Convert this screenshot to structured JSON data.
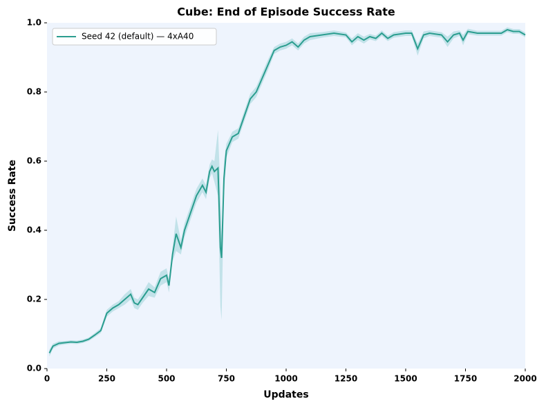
{
  "chart_data": {
    "type": "line",
    "title": "Cube: End of Episode Success Rate",
    "x_label": "Updates",
    "y_label": "Success Rate",
    "x": [
      10,
      25,
      50,
      75,
      100,
      125,
      150,
      175,
      200,
      225,
      250,
      275,
      300,
      325,
      350,
      365,
      380,
      400,
      425,
      450,
      475,
      500,
      510,
      525,
      540,
      560,
      575,
      600,
      625,
      650,
      665,
      680,
      690,
      700,
      715,
      725,
      730,
      740,
      750,
      775,
      800,
      825,
      850,
      875,
      900,
      925,
      950,
      975,
      1000,
      1025,
      1050,
      1075,
      1100,
      1150,
      1200,
      1250,
      1275,
      1300,
      1325,
      1350,
      1375,
      1400,
      1425,
      1450,
      1500,
      1525,
      1550,
      1575,
      1600,
      1650,
      1675,
      1700,
      1725,
      1740,
      1760,
      1800,
      1850,
      1900,
      1925,
      1950,
      1975,
      2000
    ],
    "series": [
      {
        "name": "Seed 42 (default) — 4xA40",
        "color": "#2a9d8f",
        "band_color": "#9fd3d8",
        "values": [
          0.045,
          0.065,
          0.073,
          0.075,
          0.077,
          0.076,
          0.079,
          0.085,
          0.097,
          0.11,
          0.16,
          0.175,
          0.185,
          0.2,
          0.215,
          0.19,
          0.185,
          0.205,
          0.23,
          0.22,
          0.26,
          0.27,
          0.24,
          0.33,
          0.39,
          0.35,
          0.4,
          0.45,
          0.5,
          0.53,
          0.51,
          0.57,
          0.585,
          0.57,
          0.58,
          0.35,
          0.32,
          0.55,
          0.63,
          0.67,
          0.68,
          0.73,
          0.78,
          0.8,
          0.84,
          0.88,
          0.92,
          0.93,
          0.935,
          0.945,
          0.93,
          0.95,
          0.96,
          0.965,
          0.97,
          0.965,
          0.945,
          0.96,
          0.95,
          0.96,
          0.955,
          0.97,
          0.955,
          0.965,
          0.97,
          0.97,
          0.925,
          0.965,
          0.97,
          0.965,
          0.945,
          0.965,
          0.97,
          0.95,
          0.975,
          0.97,
          0.97,
          0.97,
          0.98,
          0.975,
          0.975,
          0.965
        ],
        "upper": [
          0.055,
          0.072,
          0.079,
          0.08,
          0.082,
          0.081,
          0.084,
          0.09,
          0.103,
          0.117,
          0.17,
          0.185,
          0.195,
          0.215,
          0.23,
          0.205,
          0.2,
          0.22,
          0.25,
          0.235,
          0.28,
          0.29,
          0.26,
          0.35,
          0.44,
          0.37,
          0.42,
          0.47,
          0.52,
          0.55,
          0.53,
          0.59,
          0.605,
          0.6,
          0.69,
          0.52,
          0.38,
          0.6,
          0.65,
          0.685,
          0.695,
          0.745,
          0.795,
          0.815,
          0.855,
          0.895,
          0.93,
          0.94,
          0.945,
          0.955,
          0.94,
          0.96,
          0.97,
          0.973,
          0.978,
          0.972,
          0.955,
          0.97,
          0.96,
          0.968,
          0.963,
          0.978,
          0.963,
          0.973,
          0.978,
          0.978,
          0.94,
          0.975,
          0.978,
          0.973,
          0.96,
          0.975,
          0.978,
          0.965,
          0.983,
          0.977,
          0.977,
          0.977,
          0.987,
          0.982,
          0.982,
          0.972
        ],
        "lower": [
          0.035,
          0.058,
          0.067,
          0.07,
          0.072,
          0.071,
          0.074,
          0.08,
          0.091,
          0.103,
          0.15,
          0.165,
          0.175,
          0.185,
          0.2,
          0.175,
          0.17,
          0.19,
          0.21,
          0.205,
          0.24,
          0.25,
          0.22,
          0.31,
          0.34,
          0.33,
          0.38,
          0.43,
          0.48,
          0.51,
          0.49,
          0.55,
          0.565,
          0.54,
          0.5,
          0.18,
          0.14,
          0.5,
          0.61,
          0.655,
          0.665,
          0.715,
          0.765,
          0.785,
          0.825,
          0.865,
          0.91,
          0.92,
          0.925,
          0.935,
          0.92,
          0.94,
          0.95,
          0.957,
          0.962,
          0.958,
          0.935,
          0.95,
          0.94,
          0.952,
          0.947,
          0.962,
          0.947,
          0.957,
          0.962,
          0.962,
          0.905,
          0.955,
          0.962,
          0.957,
          0.93,
          0.955,
          0.962,
          0.935,
          0.967,
          0.963,
          0.963,
          0.963,
          0.973,
          0.968,
          0.968,
          0.958
        ]
      }
    ],
    "xlim": [
      0,
      2000
    ],
    "xticks": [
      0,
      250,
      500,
      750,
      1000,
      1250,
      1500,
      1750,
      2000
    ],
    "ylim": [
      0,
      1
    ],
    "yticks": [
      {
        "value": 0,
        "label": "0.0"
      },
      0.2,
      0.4,
      0.6,
      0.8,
      {
        "value": 1,
        "label": "1.0"
      }
    ],
    "background": "#eef4fd",
    "legend": "upper-left"
  }
}
